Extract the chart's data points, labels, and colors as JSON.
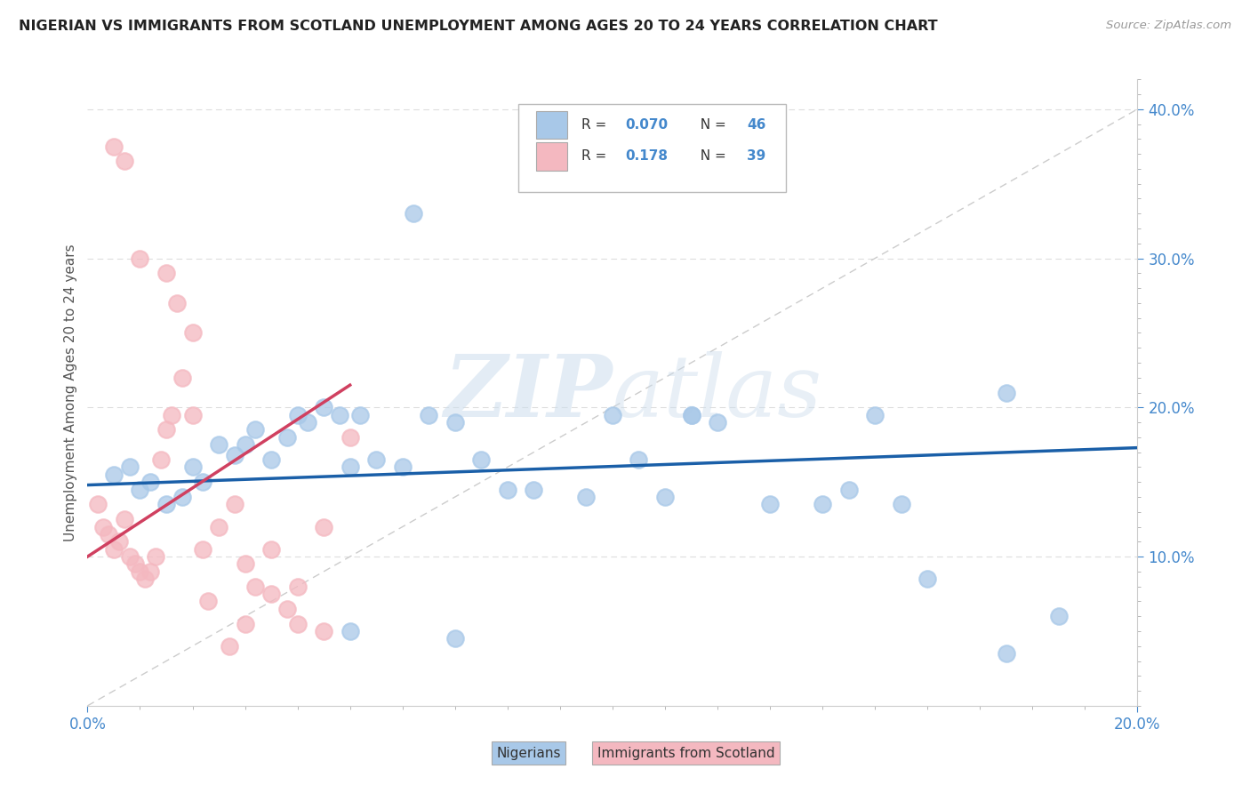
{
  "title": "NIGERIAN VS IMMIGRANTS FROM SCOTLAND UNEMPLOYMENT AMONG AGES 20 TO 24 YEARS CORRELATION CHART",
  "source": "Source: ZipAtlas.com",
  "ylabel": "Unemployment Among Ages 20 to 24 years",
  "legend_blue_r": "0.070",
  "legend_blue_n": "46",
  "legend_pink_r": "0.178",
  "legend_pink_n": "39",
  "legend_blue_label": "Nigerians",
  "legend_pink_label": "Immigrants from Scotland",
  "watermark_zip": "ZIP",
  "watermark_atlas": "atlas",
  "blue_color": "#a8c8e8",
  "pink_color": "#f4b8c0",
  "blue_line_color": "#1a5fa8",
  "pink_line_color": "#d04060",
  "tick_color": "#4488cc",
  "grid_color": "#dddddd",
  "blue_scatter": [
    [
      0.005,
      0.155
    ],
    [
      0.008,
      0.16
    ],
    [
      0.01,
      0.145
    ],
    [
      0.012,
      0.15
    ],
    [
      0.015,
      0.135
    ],
    [
      0.018,
      0.14
    ],
    [
      0.02,
      0.16
    ],
    [
      0.022,
      0.15
    ],
    [
      0.025,
      0.175
    ],
    [
      0.028,
      0.168
    ],
    [
      0.03,
      0.175
    ],
    [
      0.032,
      0.185
    ],
    [
      0.035,
      0.165
    ],
    [
      0.038,
      0.18
    ],
    [
      0.04,
      0.195
    ],
    [
      0.042,
      0.19
    ],
    [
      0.045,
      0.2
    ],
    [
      0.048,
      0.195
    ],
    [
      0.05,
      0.16
    ],
    [
      0.052,
      0.195
    ],
    [
      0.055,
      0.165
    ],
    [
      0.06,
      0.16
    ],
    [
      0.062,
      0.33
    ],
    [
      0.065,
      0.195
    ],
    [
      0.07,
      0.19
    ],
    [
      0.075,
      0.165
    ],
    [
      0.08,
      0.145
    ],
    [
      0.085,
      0.145
    ],
    [
      0.095,
      0.14
    ],
    [
      0.1,
      0.195
    ],
    [
      0.105,
      0.165
    ],
    [
      0.11,
      0.14
    ],
    [
      0.115,
      0.195
    ],
    [
      0.12,
      0.19
    ],
    [
      0.115,
      0.195
    ],
    [
      0.13,
      0.135
    ],
    [
      0.14,
      0.135
    ],
    [
      0.145,
      0.145
    ],
    [
      0.15,
      0.195
    ],
    [
      0.155,
      0.135
    ],
    [
      0.16,
      0.085
    ],
    [
      0.175,
      0.21
    ],
    [
      0.05,
      0.05
    ],
    [
      0.07,
      0.045
    ],
    [
      0.175,
      0.035
    ],
    [
      0.185,
      0.06
    ]
  ],
  "pink_scatter": [
    [
      0.002,
      0.135
    ],
    [
      0.003,
      0.12
    ],
    [
      0.004,
      0.115
    ],
    [
      0.005,
      0.105
    ],
    [
      0.005,
      0.375
    ],
    [
      0.006,
      0.11
    ],
    [
      0.007,
      0.125
    ],
    [
      0.007,
      0.365
    ],
    [
      0.008,
      0.1
    ],
    [
      0.009,
      0.095
    ],
    [
      0.01,
      0.09
    ],
    [
      0.01,
      0.3
    ],
    [
      0.011,
      0.085
    ],
    [
      0.012,
      0.09
    ],
    [
      0.013,
      0.1
    ],
    [
      0.014,
      0.165
    ],
    [
      0.015,
      0.185
    ],
    [
      0.015,
      0.29
    ],
    [
      0.016,
      0.195
    ],
    [
      0.017,
      0.27
    ],
    [
      0.018,
      0.22
    ],
    [
      0.02,
      0.195
    ],
    [
      0.02,
      0.25
    ],
    [
      0.022,
      0.105
    ],
    [
      0.023,
      0.07
    ],
    [
      0.025,
      0.12
    ],
    [
      0.027,
      0.04
    ],
    [
      0.028,
      0.135
    ],
    [
      0.03,
      0.095
    ],
    [
      0.03,
      0.055
    ],
    [
      0.032,
      0.08
    ],
    [
      0.035,
      0.075
    ],
    [
      0.035,
      0.105
    ],
    [
      0.038,
      0.065
    ],
    [
      0.04,
      0.055
    ],
    [
      0.04,
      0.08
    ],
    [
      0.045,
      0.05
    ],
    [
      0.045,
      0.12
    ],
    [
      0.05,
      0.18
    ]
  ],
  "xlim": [
    0,
    0.2
  ],
  "ylim": [
    0,
    0.42
  ],
  "blue_line_x": [
    0.0,
    0.2
  ],
  "blue_line_y": [
    0.148,
    0.173
  ],
  "pink_line_x": [
    0.0,
    0.05
  ],
  "pink_line_y": [
    0.1,
    0.215
  ],
  "diag_line_x": [
    0.0,
    0.2
  ],
  "diag_line_y": [
    0.0,
    0.4
  ],
  "yticks": [
    0.1,
    0.2,
    0.3,
    0.4
  ],
  "xticks_major": [
    0.0,
    0.1,
    0.2
  ],
  "num_xminor": 10
}
